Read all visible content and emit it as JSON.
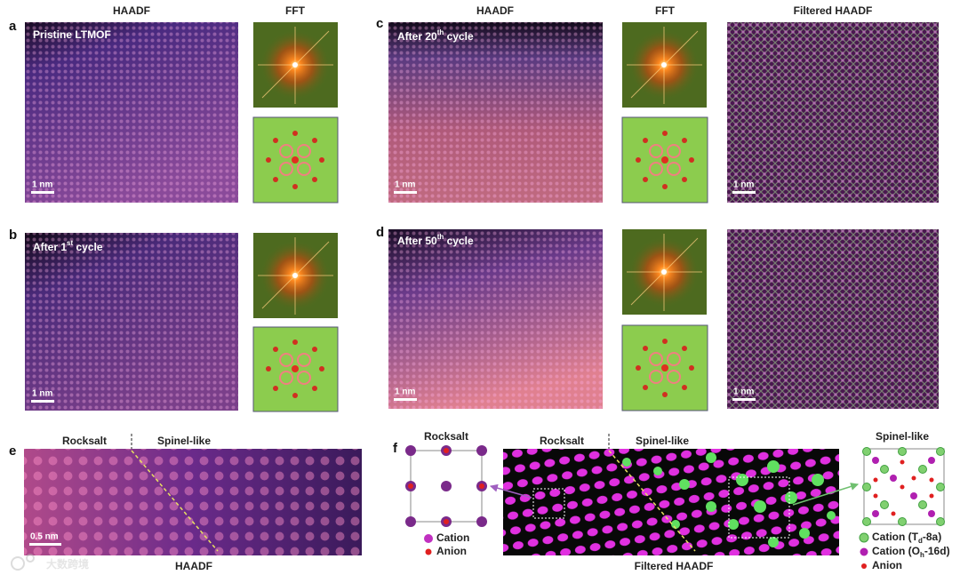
{
  "column_headers": [
    "HAADF",
    "FFT",
    "HAADF",
    "FFT",
    "Filtered HAADF"
  ],
  "panels": {
    "a": {
      "letter": "a",
      "label": "Pristine LTMOF",
      "scale_bar": "1 nm"
    },
    "b": {
      "letter": "b",
      "label": {
        "text": "After 1",
        "sup": "st",
        "tail": " cycle"
      },
      "scale_bar": "1 nm"
    },
    "c": {
      "letter": "c",
      "label": {
        "text": "After 20",
        "sup": "th",
        "tail": " cycle"
      },
      "scale_bar": "1 nm",
      "filtered_scale_bar": "1 nm"
    },
    "d": {
      "letter": "d",
      "label": {
        "text": "After 50",
        "sup": "th",
        "tail": " cycle"
      },
      "scale_bar": "1 nm",
      "filtered_scale_bar": "1 nm"
    },
    "e": {
      "letter": "e",
      "left_region": "Rocksalt",
      "right_region": "Spinel-like",
      "scale_bar": "0.5 nm",
      "caption": "HAADF"
    },
    "f": {
      "letter": "f",
      "left_region": "Rocksalt",
      "right_region": "Spinel-like",
      "caption": "Filtered HAADF",
      "rocksalt_model": {
        "title": "Rocksalt",
        "legend": [
          "Cation",
          "Anion"
        ]
      },
      "spinel_model": {
        "title": "Spinel-like",
        "legend": [
          {
            "text": "Cation (T",
            "sub": "d",
            "tail": "-8a)"
          },
          {
            "text": "Cation (O",
            "sub": "h",
            "tail": "-16d)"
          },
          "Anion"
        ]
      }
    }
  },
  "watermark": "大数跨境"
}
